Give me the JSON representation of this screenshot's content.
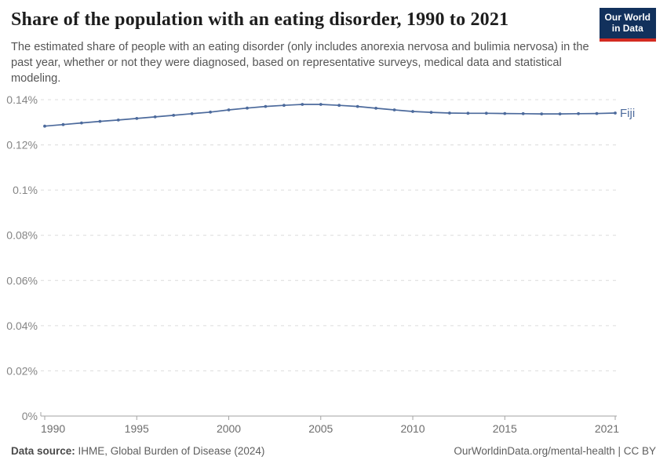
{
  "header": {
    "title": "Share of the population with an eating disorder, 1990 to 2021",
    "subtitle": "The estimated share of people with an eating disorder (only includes anorexia nervosa and bulimia nervosa) in the past year, whether or not they were diagnosed, based on representative surveys, medical data and statistical modeling.",
    "logo": {
      "line1": "Our World",
      "line2": "in Data",
      "bg_color": "#12315c",
      "bar_color": "#d32b21"
    }
  },
  "chart_data": {
    "type": "line",
    "title": "Share of the population with an eating disorder, 1990 to 2021",
    "xlabel": "",
    "ylabel": "",
    "unit": "%",
    "xlim": [
      1990,
      2021
    ],
    "ylim": [
      0,
      0.14
    ],
    "grid": "horizontal-dashed",
    "legend_position": "end-of-line-label",
    "x": [
      1990,
      1991,
      1992,
      1993,
      1994,
      1995,
      1996,
      1997,
      1998,
      1999,
      2000,
      2001,
      2002,
      2003,
      2004,
      2005,
      2006,
      2007,
      2008,
      2009,
      2010,
      2011,
      2012,
      2013,
      2014,
      2015,
      2016,
      2017,
      2018,
      2019,
      2020,
      2021
    ],
    "series": [
      {
        "name": "Fiji",
        "color": "#4c6a9c",
        "values": [
          0.1283,
          0.129,
          0.1297,
          0.1304,
          0.131,
          0.1317,
          0.1324,
          0.1331,
          0.1338,
          0.1345,
          0.1355,
          0.1363,
          0.137,
          0.1375,
          0.1379,
          0.1379,
          0.1375,
          0.137,
          0.1362,
          0.1355,
          0.1348,
          0.1344,
          0.1341,
          0.134,
          0.134,
          0.1339,
          0.1338,
          0.1337,
          0.1337,
          0.1338,
          0.1339,
          0.1341
        ]
      }
    ],
    "yticks": [
      {
        "value": 0,
        "label": "0%"
      },
      {
        "value": 0.02,
        "label": "0.02%"
      },
      {
        "value": 0.04,
        "label": "0.04%"
      },
      {
        "value": 0.06,
        "label": "0.06%"
      },
      {
        "value": 0.08,
        "label": "0.08%"
      },
      {
        "value": 0.1,
        "label": "0.1%"
      },
      {
        "value": 0.12,
        "label": "0.12%"
      },
      {
        "value": 0.14,
        "label": "0.14%"
      }
    ],
    "xticks": [
      1990,
      1995,
      2000,
      2005,
      2010,
      2015,
      2021
    ],
    "colors": {
      "line": "#4c6a9c",
      "grid": "#dcdcdc",
      "axis": "#a3a3a3",
      "ytick_label": "#858585",
      "xtick_label": "#6d6d6d"
    }
  },
  "footer": {
    "datasource_label": "Data source:",
    "datasource_value": " IHME, Global Burden of Disease (2024)",
    "link": "OurWorldinData.org/mental-health",
    "separator": " | ",
    "license": "CC BY"
  }
}
